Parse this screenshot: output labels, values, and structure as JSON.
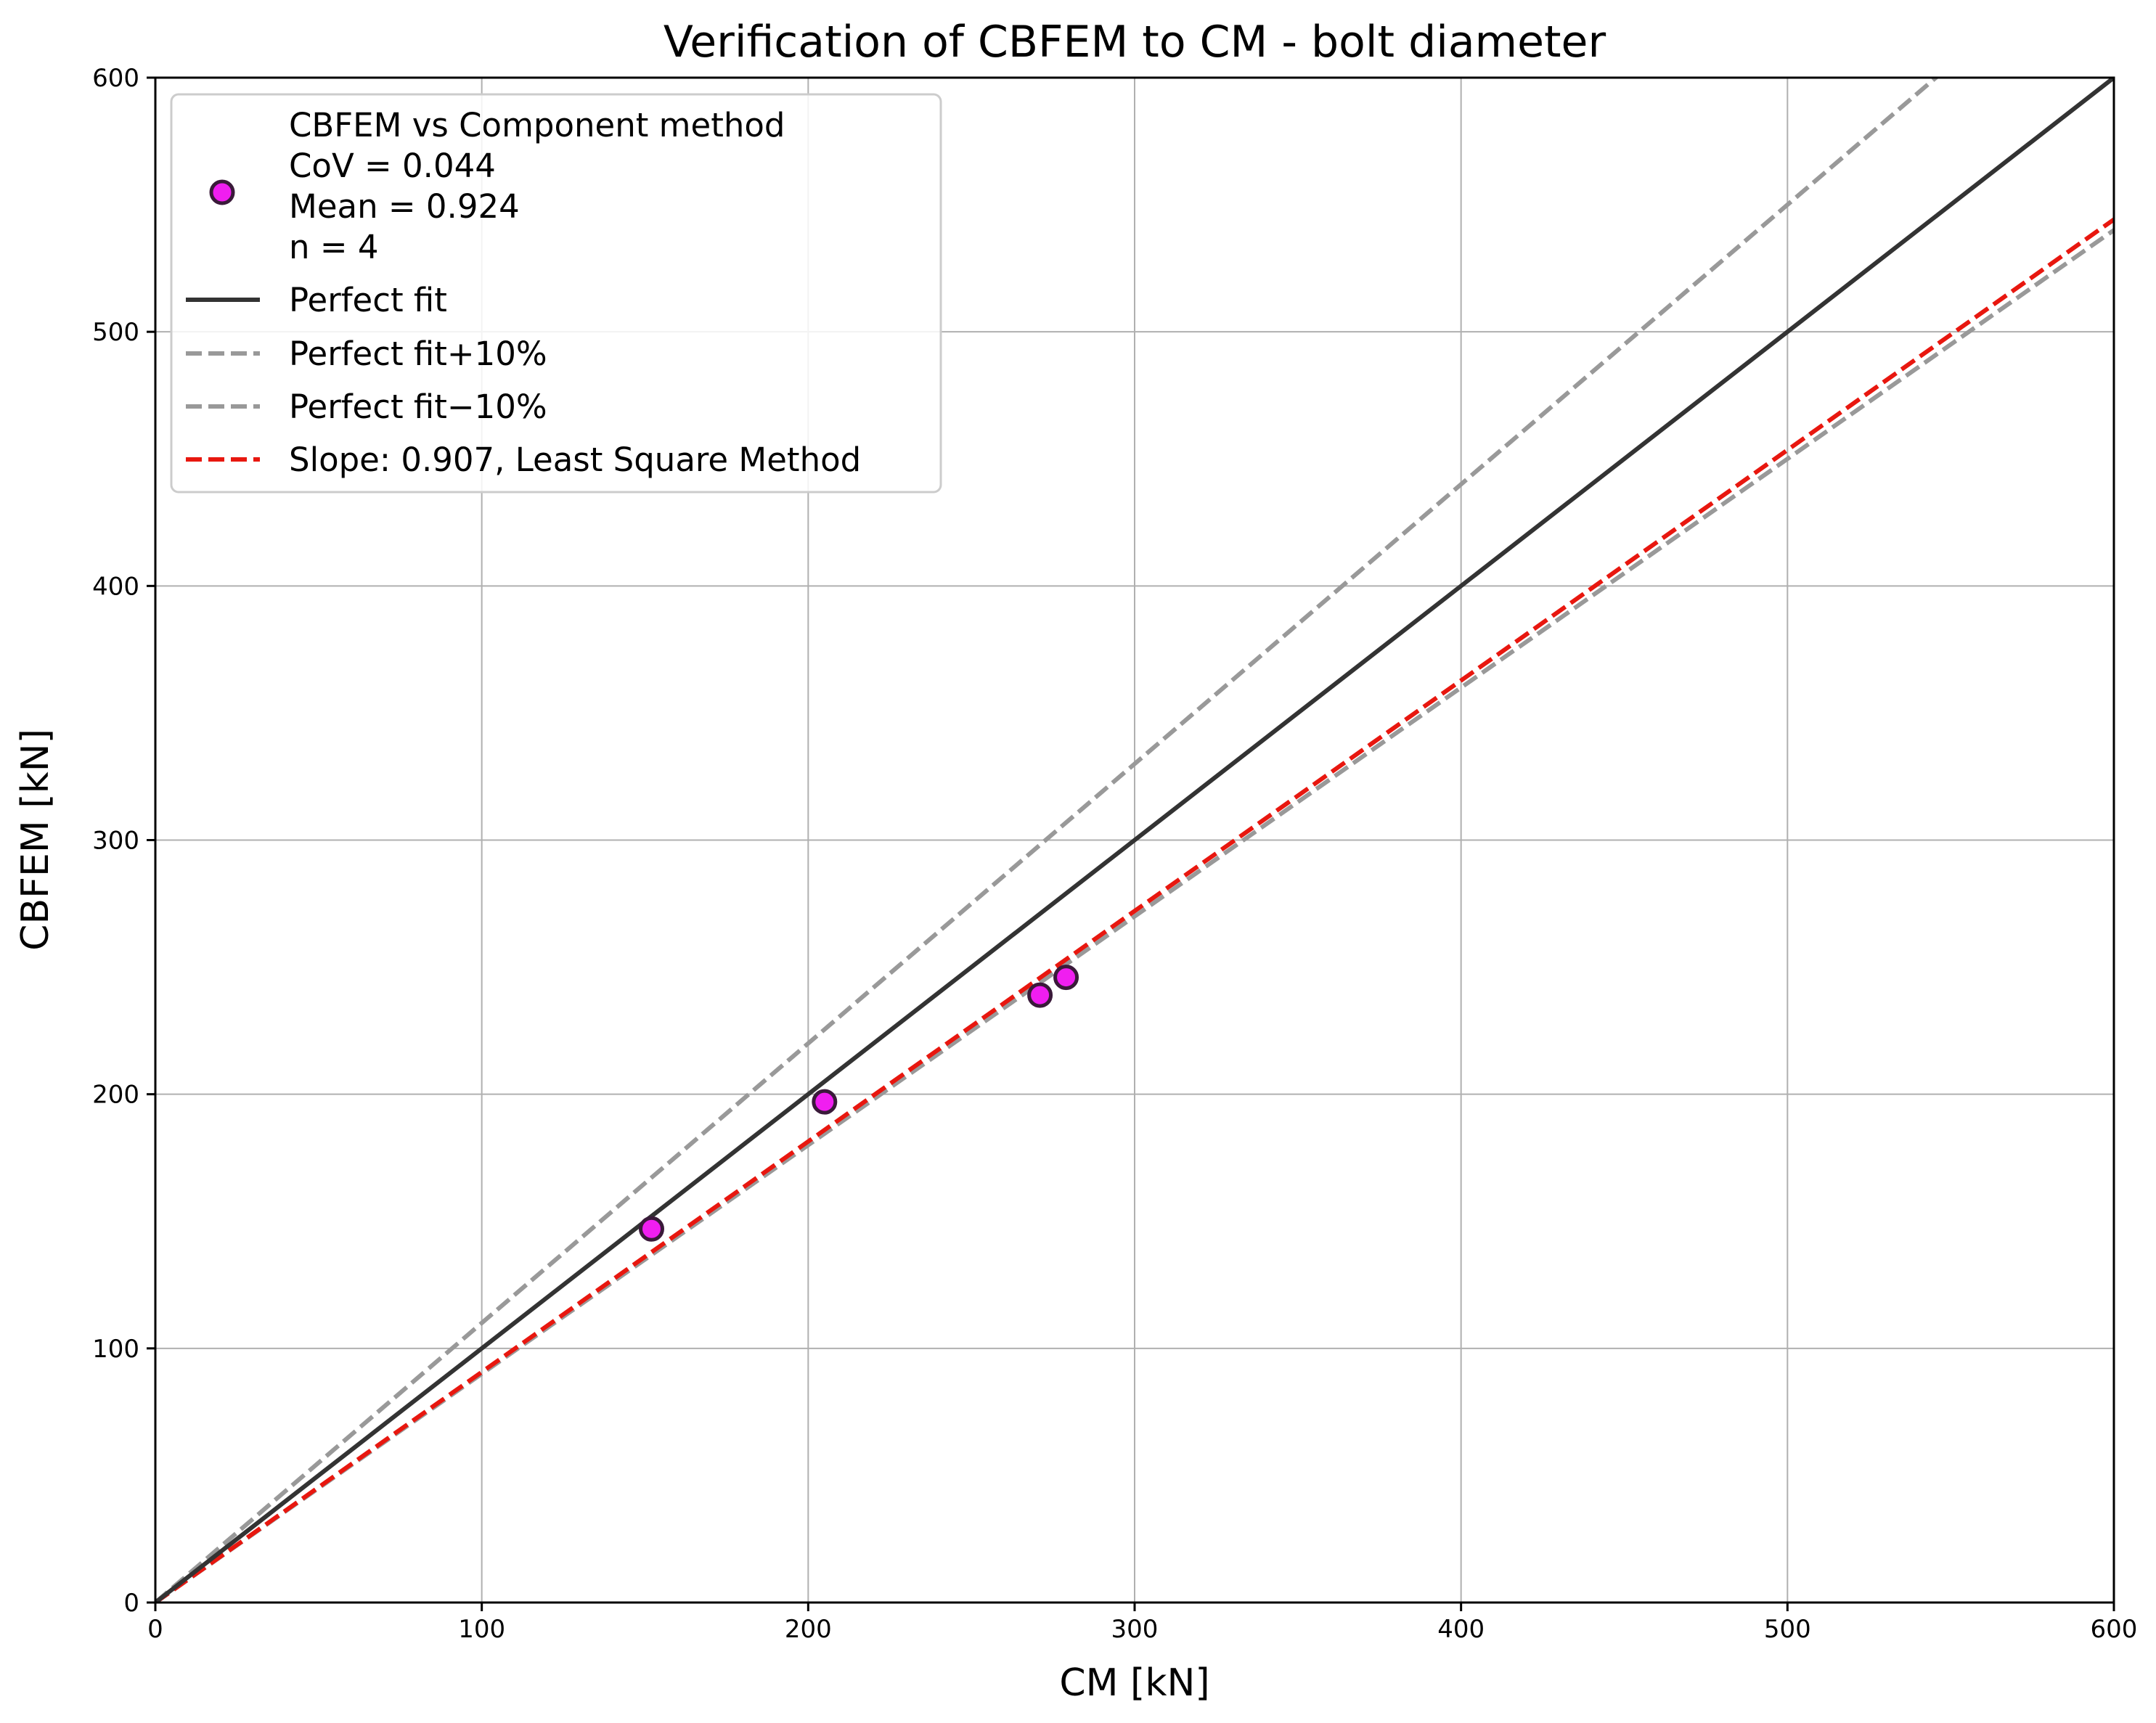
{
  "chart_data": {
    "type": "scatter",
    "title": "Verification of CBFEM to CM - bolt diameter",
    "xlabel": "CM [kN]",
    "ylabel": "CBFEM [kN]",
    "xlim": [
      0,
      600
    ],
    "ylim": [
      0,
      600
    ],
    "xticks": [
      0,
      100,
      200,
      300,
      400,
      500,
      600
    ],
    "yticks": [
      0,
      100,
      200,
      300,
      400,
      500,
      600
    ],
    "grid": true,
    "legend_position": "top-left",
    "points": [
      {
        "x": 152,
        "y": 147
      },
      {
        "x": 205,
        "y": 197
      },
      {
        "x": 271,
        "y": 239
      },
      {
        "x": 279,
        "y": 246
      }
    ],
    "lines": [
      {
        "id": "perfect",
        "slope": 1.0,
        "color": "#333333",
        "dash": "solid"
      },
      {
        "id": "plus10",
        "slope": 1.1,
        "color": "#999999",
        "dash": "dashed"
      },
      {
        "id": "minus10",
        "slope": 0.9,
        "color": "#999999",
        "dash": "dashed"
      },
      {
        "id": "lsq",
        "slope": 0.907,
        "color": "#e8170f",
        "dash": "dashed"
      }
    ],
    "marker_color": "#f01ef0",
    "marker_edge_color": "#3a1a3a",
    "legend": {
      "scatter_label": [
        "CBFEM vs Component method",
        "CoV = 0.044",
        "Mean = 0.924",
        "n = 4"
      ],
      "perfect": "Perfect fit",
      "plus10": "Perfect fit+10%",
      "minus10": "Perfect fit−10%",
      "lsq": "Slope: 0.907, Least Square Method"
    }
  }
}
